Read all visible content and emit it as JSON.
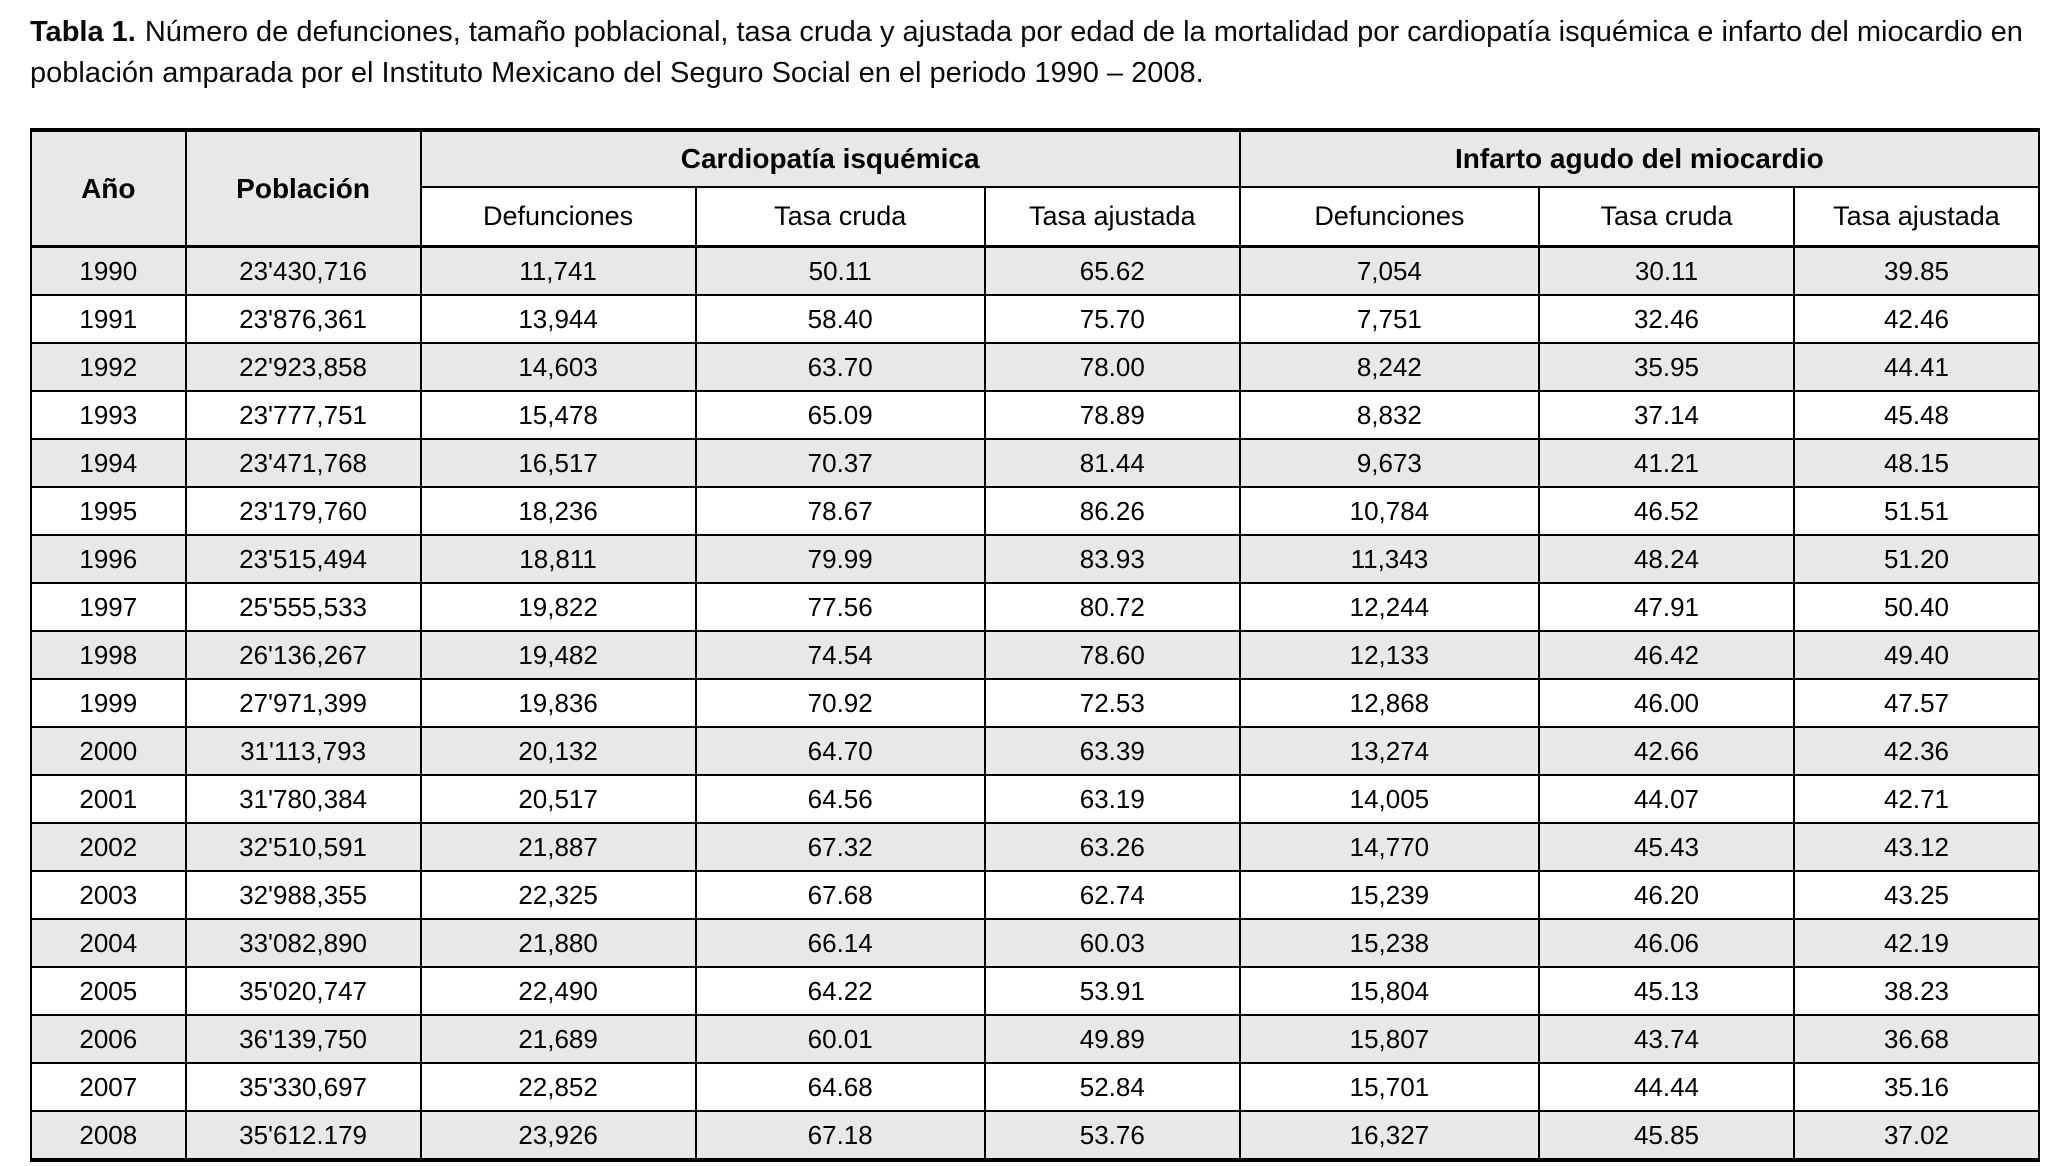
{
  "caption": {
    "label": "Tabla 1.",
    "text": "Número de defunciones, tamaño poblacional, tasa cruda y ajustada por edad de la mortalidad por cardiopatía isquémica e infarto del miocardio en población amparada por el Instituto Mexicano del Seguro Social en el periodo 1990 – 2008."
  },
  "table": {
    "headers": {
      "year": "Año",
      "population": "Población",
      "group1": "Cardiopatía isquémica",
      "group2": "Infarto agudo del miocardio",
      "sub": [
        "Defunciones",
        "Tasa cruda",
        "Tasa ajustada"
      ]
    },
    "rows": [
      [
        "1990",
        "23'430,716",
        "11,741",
        "50.11",
        "65.62",
        "7,054",
        "30.11",
        "39.85"
      ],
      [
        "1991",
        "23'876,361",
        "13,944",
        "58.40",
        "75.70",
        "7,751",
        "32.46",
        "42.46"
      ],
      [
        "1992",
        "22'923,858",
        "14,603",
        "63.70",
        "78.00",
        "8,242",
        "35.95",
        "44.41"
      ],
      [
        "1993",
        "23'777,751",
        "15,478",
        "65.09",
        "78.89",
        "8,832",
        "37.14",
        "45.48"
      ],
      [
        "1994",
        "23'471,768",
        "16,517",
        "70.37",
        "81.44",
        "9,673",
        "41.21",
        "48.15"
      ],
      [
        "1995",
        "23'179,760",
        "18,236",
        "78.67",
        "86.26",
        "10,784",
        "46.52",
        "51.51"
      ],
      [
        "1996",
        "23'515,494",
        "18,811",
        "79.99",
        "83.93",
        "11,343",
        "48.24",
        "51.20"
      ],
      [
        "1997",
        "25'555,533",
        "19,822",
        "77.56",
        "80.72",
        "12,244",
        "47.91",
        "50.40"
      ],
      [
        "1998",
        "26'136,267",
        "19,482",
        "74.54",
        "78.60",
        "12,133",
        "46.42",
        "49.40"
      ],
      [
        "1999",
        "27'971,399",
        "19,836",
        "70.92",
        "72.53",
        "12,868",
        "46.00",
        "47.57"
      ],
      [
        "2000",
        "31'113,793",
        "20,132",
        "64.70",
        "63.39",
        "13,274",
        "42.66",
        "42.36"
      ],
      [
        "2001",
        "31'780,384",
        "20,517",
        "64.56",
        "63.19",
        "14,005",
        "44.07",
        "42.71"
      ],
      [
        "2002",
        "32'510,591",
        "21,887",
        "67.32",
        "63.26",
        "14,770",
        "45.43",
        "43.12"
      ],
      [
        "2003",
        "32'988,355",
        "22,325",
        "67.68",
        "62.74",
        "15,239",
        "46.20",
        "43.25"
      ],
      [
        "2004",
        "33'082,890",
        "21,880",
        "66.14",
        "60.03",
        "15,238",
        "46.06",
        "42.19"
      ],
      [
        "2005",
        "35'020,747",
        "22,490",
        "64.22",
        "53.91",
        "15,804",
        "45.13",
        "38.23"
      ],
      [
        "2006",
        "36'139,750",
        "21,689",
        "60.01",
        "49.89",
        "15,807",
        "43.74",
        "36.68"
      ],
      [
        "2007",
        "35'330,697",
        "22,852",
        "64.68",
        "52.84",
        "15,701",
        "44.44",
        "35.16"
      ],
      [
        "2008",
        "35'612.179",
        "23,926",
        "67.18",
        "53.76",
        "16,327",
        "45.85",
        "37.02"
      ]
    ]
  },
  "colors": {
    "row_stripe": "#e8e8e8",
    "border": "#000000",
    "text": "#000000",
    "background": "#ffffff"
  }
}
